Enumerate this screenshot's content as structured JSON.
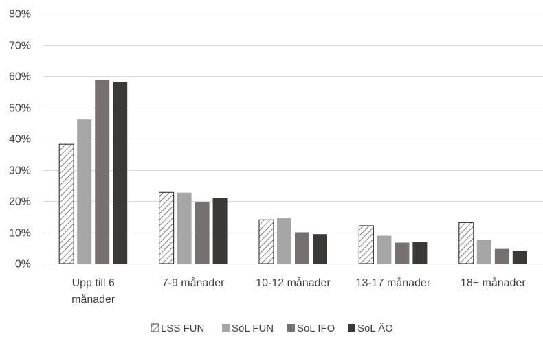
{
  "chart_data": {
    "type": "bar",
    "title": "",
    "xlabel": "",
    "ylabel": "",
    "ylim": [
      0,
      80
    ],
    "yticks": [
      0,
      10,
      20,
      30,
      40,
      50,
      60,
      70,
      80
    ],
    "ytick_labels": [
      "0%",
      "10%",
      "20%",
      "30%",
      "40%",
      "50%",
      "60%",
      "70%",
      "80%"
    ],
    "categories": [
      [
        "Upp till 6",
        "månader"
      ],
      [
        "7-9 månader"
      ],
      [
        "10-12 månader"
      ],
      [
        "13-17 månader"
      ],
      [
        "18+ månader"
      ]
    ],
    "series": [
      {
        "name": "LSS FUN",
        "values": [
          38.2,
          22.8,
          14.0,
          12.1,
          13.1
        ],
        "color": "#ffffff",
        "pattern": "hatch"
      },
      {
        "name": "SoL FUN",
        "values": [
          46.1,
          22.7,
          14.5,
          8.9,
          7.5
        ],
        "color": "#a6a6a6"
      },
      {
        "name": "SoL IFO",
        "values": [
          58.8,
          19.6,
          10.0,
          6.7,
          4.7
        ],
        "color": "#767171"
      },
      {
        "name": "SoL ÄO",
        "values": [
          58.1,
          21.1,
          9.4,
          6.9,
          4.1
        ],
        "color": "#3b3838"
      }
    ],
    "grid": true,
    "legend": "bottom"
  }
}
